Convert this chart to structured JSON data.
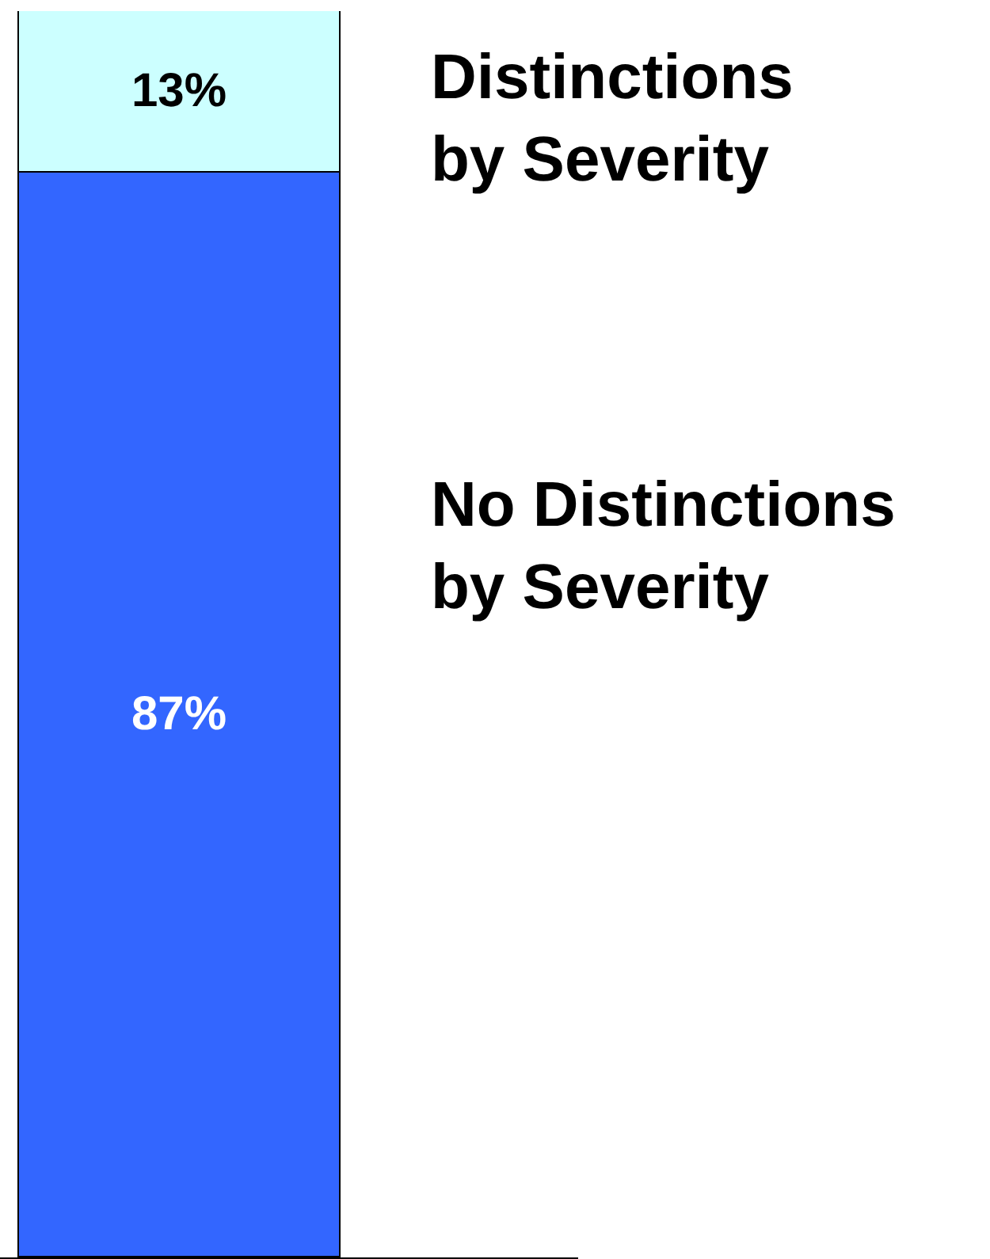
{
  "chart_data": {
    "type": "bar",
    "stacked": true,
    "tick_labels": false,
    "categories": [
      null
    ],
    "series": [
      {
        "name": "No Distinctions by Severity",
        "color": "#3366ff",
        "values": [
          87
        ],
        "value_labels": [
          "87%"
        ]
      },
      {
        "name": "Distinctions by Severity",
        "color": "#ccffff",
        "values": [
          13
        ],
        "value_labels": [
          "13%"
        ]
      }
    ]
  }
}
